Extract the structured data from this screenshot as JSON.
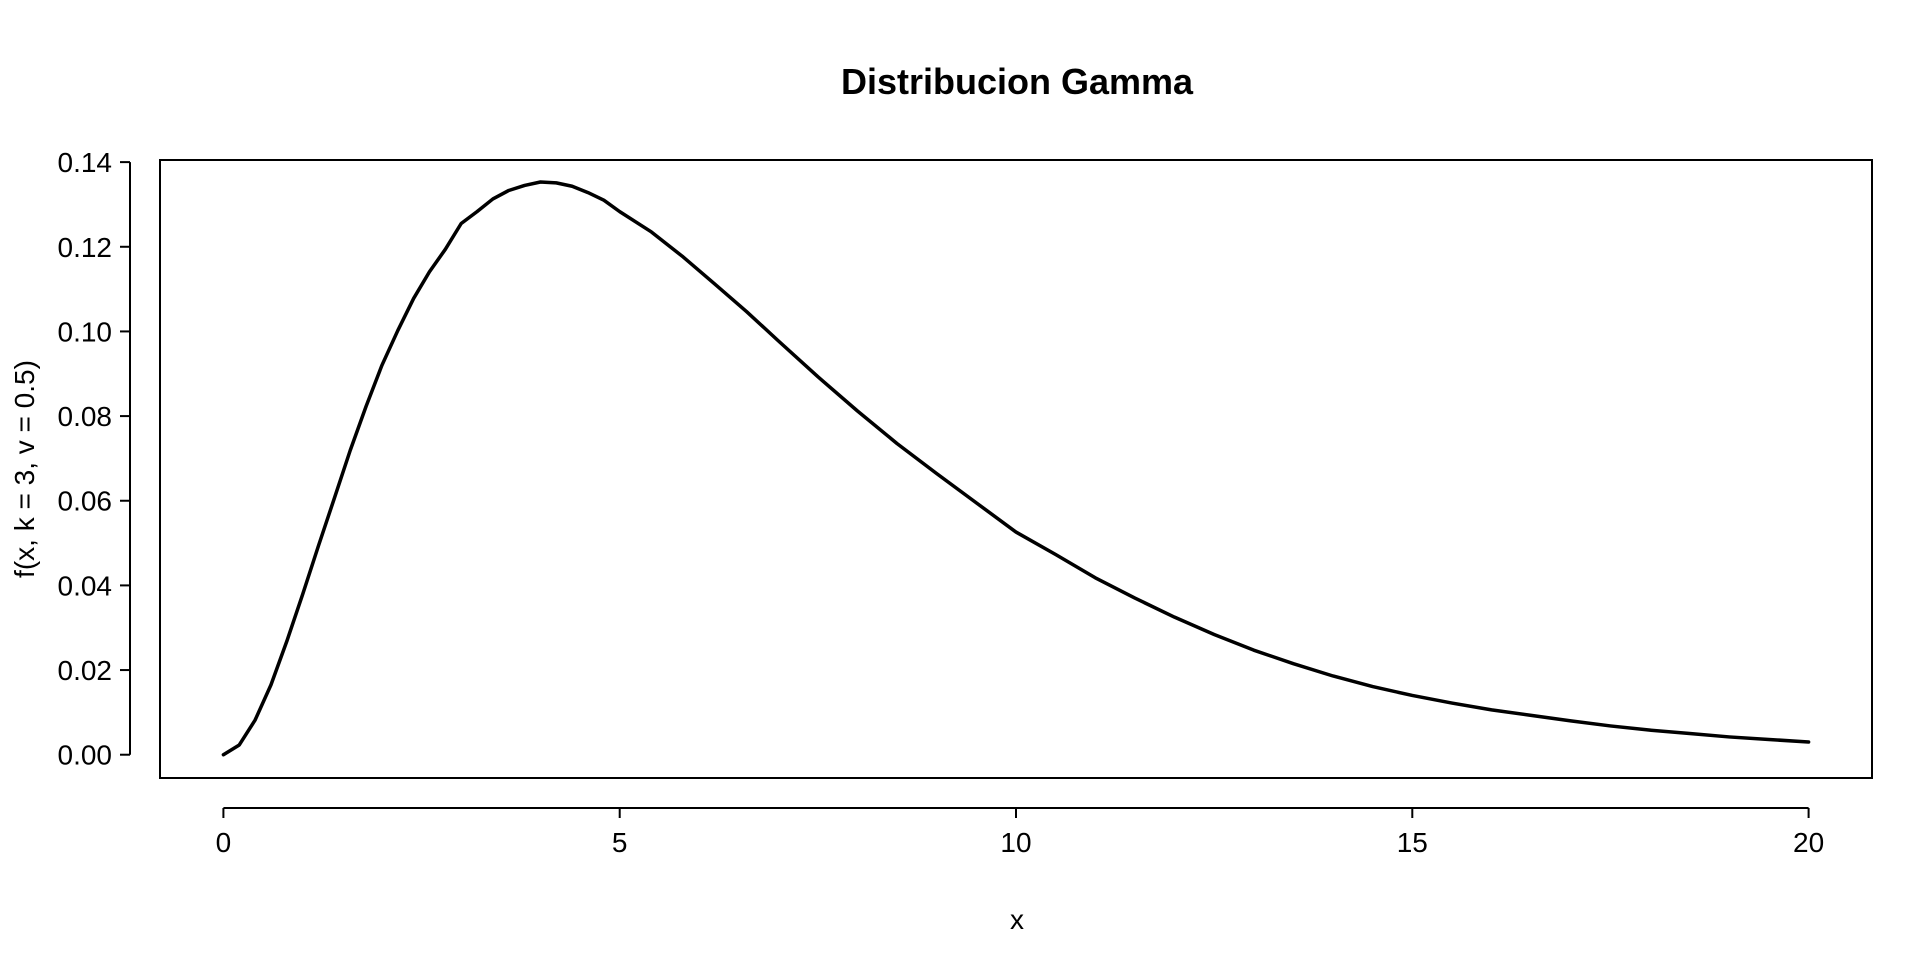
{
  "chart_data": {
    "type": "line",
    "title": "Distribucion Gamma",
    "xlabel": "x",
    "ylabel": "f(x, k = 3, v = 0.5)",
    "xlim": [
      -0.8,
      20.8
    ],
    "ylim": [
      -0.0055,
      0.1405
    ],
    "x_ticks": [
      0,
      5,
      10,
      15,
      20
    ],
    "x_tick_labels": [
      "0",
      "5",
      "10",
      "15",
      "20"
    ],
    "y_ticks": [
      0,
      0.02,
      0.04,
      0.06,
      0.08,
      0.1,
      0.12,
      0.14
    ],
    "y_tick_labels": [
      "0.00",
      "0.02",
      "0.04",
      "0.06",
      "0.08",
      "0.10",
      "0.12",
      "0.14"
    ],
    "grid": false,
    "legend": "none",
    "line_color": "#000000",
    "series": [
      {
        "x": [
          0,
          0.2,
          0.4,
          0.6,
          0.8,
          1.0,
          1.2,
          1.4,
          1.6,
          1.8,
          2.0,
          2.2,
          2.4,
          2.6,
          2.8,
          3.0,
          3.2,
          3.4,
          3.6,
          3.8,
          4.0,
          4.2,
          4.4,
          4.6,
          4.8,
          5.0,
          5.4,
          5.8,
          6.2,
          6.6,
          7.0,
          7.5,
          8.0,
          8.5,
          9.0,
          9.5,
          10.0,
          10.5,
          11.0,
          11.5,
          12.0,
          12.5,
          13.0,
          13.5,
          14.0,
          14.5,
          15.0,
          15.5,
          16.0,
          16.5,
          17.0,
          17.5,
          18.0,
          18.5,
          19.0,
          19.5,
          20.0
        ],
        "values": [
          0,
          0.0023,
          0.0082,
          0.0165,
          0.0268,
          0.0379,
          0.0494,
          0.0606,
          0.0719,
          0.0823,
          0.092,
          0.1002,
          0.1078,
          0.1141,
          0.1194,
          0.1255,
          0.1283,
          0.1313,
          0.1333,
          0.1345,
          0.1353,
          0.1351,
          0.1343,
          0.1328,
          0.131,
          0.1283,
          0.1235,
          0.1176,
          0.1112,
          0.1047,
          0.0978,
          0.0893,
          0.0812,
          0.0735,
          0.0664,
          0.0595,
          0.0526,
          0.0473,
          0.0418,
          0.037,
          0.0325,
          0.0284,
          0.0247,
          0.0215,
          0.0186,
          0.0161,
          0.014,
          0.0122,
          0.0106,
          0.0093,
          0.008,
          0.0068,
          0.0058,
          0.005,
          0.0042,
          0.0036,
          0.003
        ]
      }
    ]
  }
}
